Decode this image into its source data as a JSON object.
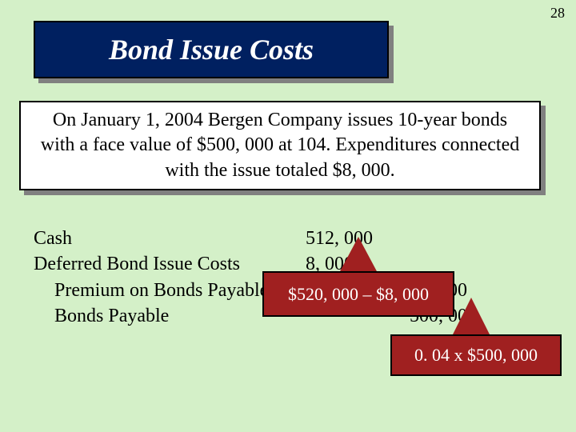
{
  "page_number": "28",
  "title": "Bond Issue Costs",
  "description": "On January 1, 2004 Bergen Company issues 10-year bonds with a face value of $500, 000 at 104.  Expenditures connected with the issue totaled $8, 000.",
  "journal": {
    "rows": [
      {
        "account": "Cash",
        "debit": "512, 000",
        "credit": "",
        "indent": false
      },
      {
        "account": "Deferred Bond Issue Costs",
        "debit": "8, 000",
        "credit": "",
        "indent": false
      },
      {
        "account": "Premium on Bonds Payable",
        "debit": "",
        "credit": "20, 000",
        "indent": true
      },
      {
        "account": "Bonds Payable",
        "debit": "",
        "credit": "500, 000",
        "indent": true
      }
    ]
  },
  "callout1": "$520, 000 – $8, 000",
  "callout2": "0. 04 x $500, 000",
  "colors": {
    "slide_bg": "#d4f0c8",
    "title_bg": "#002060",
    "title_fg": "#ffffff",
    "shadow": "#808080",
    "callout_bg": "#a02020",
    "callout_fg": "#ffffff",
    "border": "#000000"
  },
  "fonts": {
    "family": "Times New Roman",
    "title_size_pt": 36,
    "body_size_pt": 24,
    "callout_size_pt": 22
  }
}
